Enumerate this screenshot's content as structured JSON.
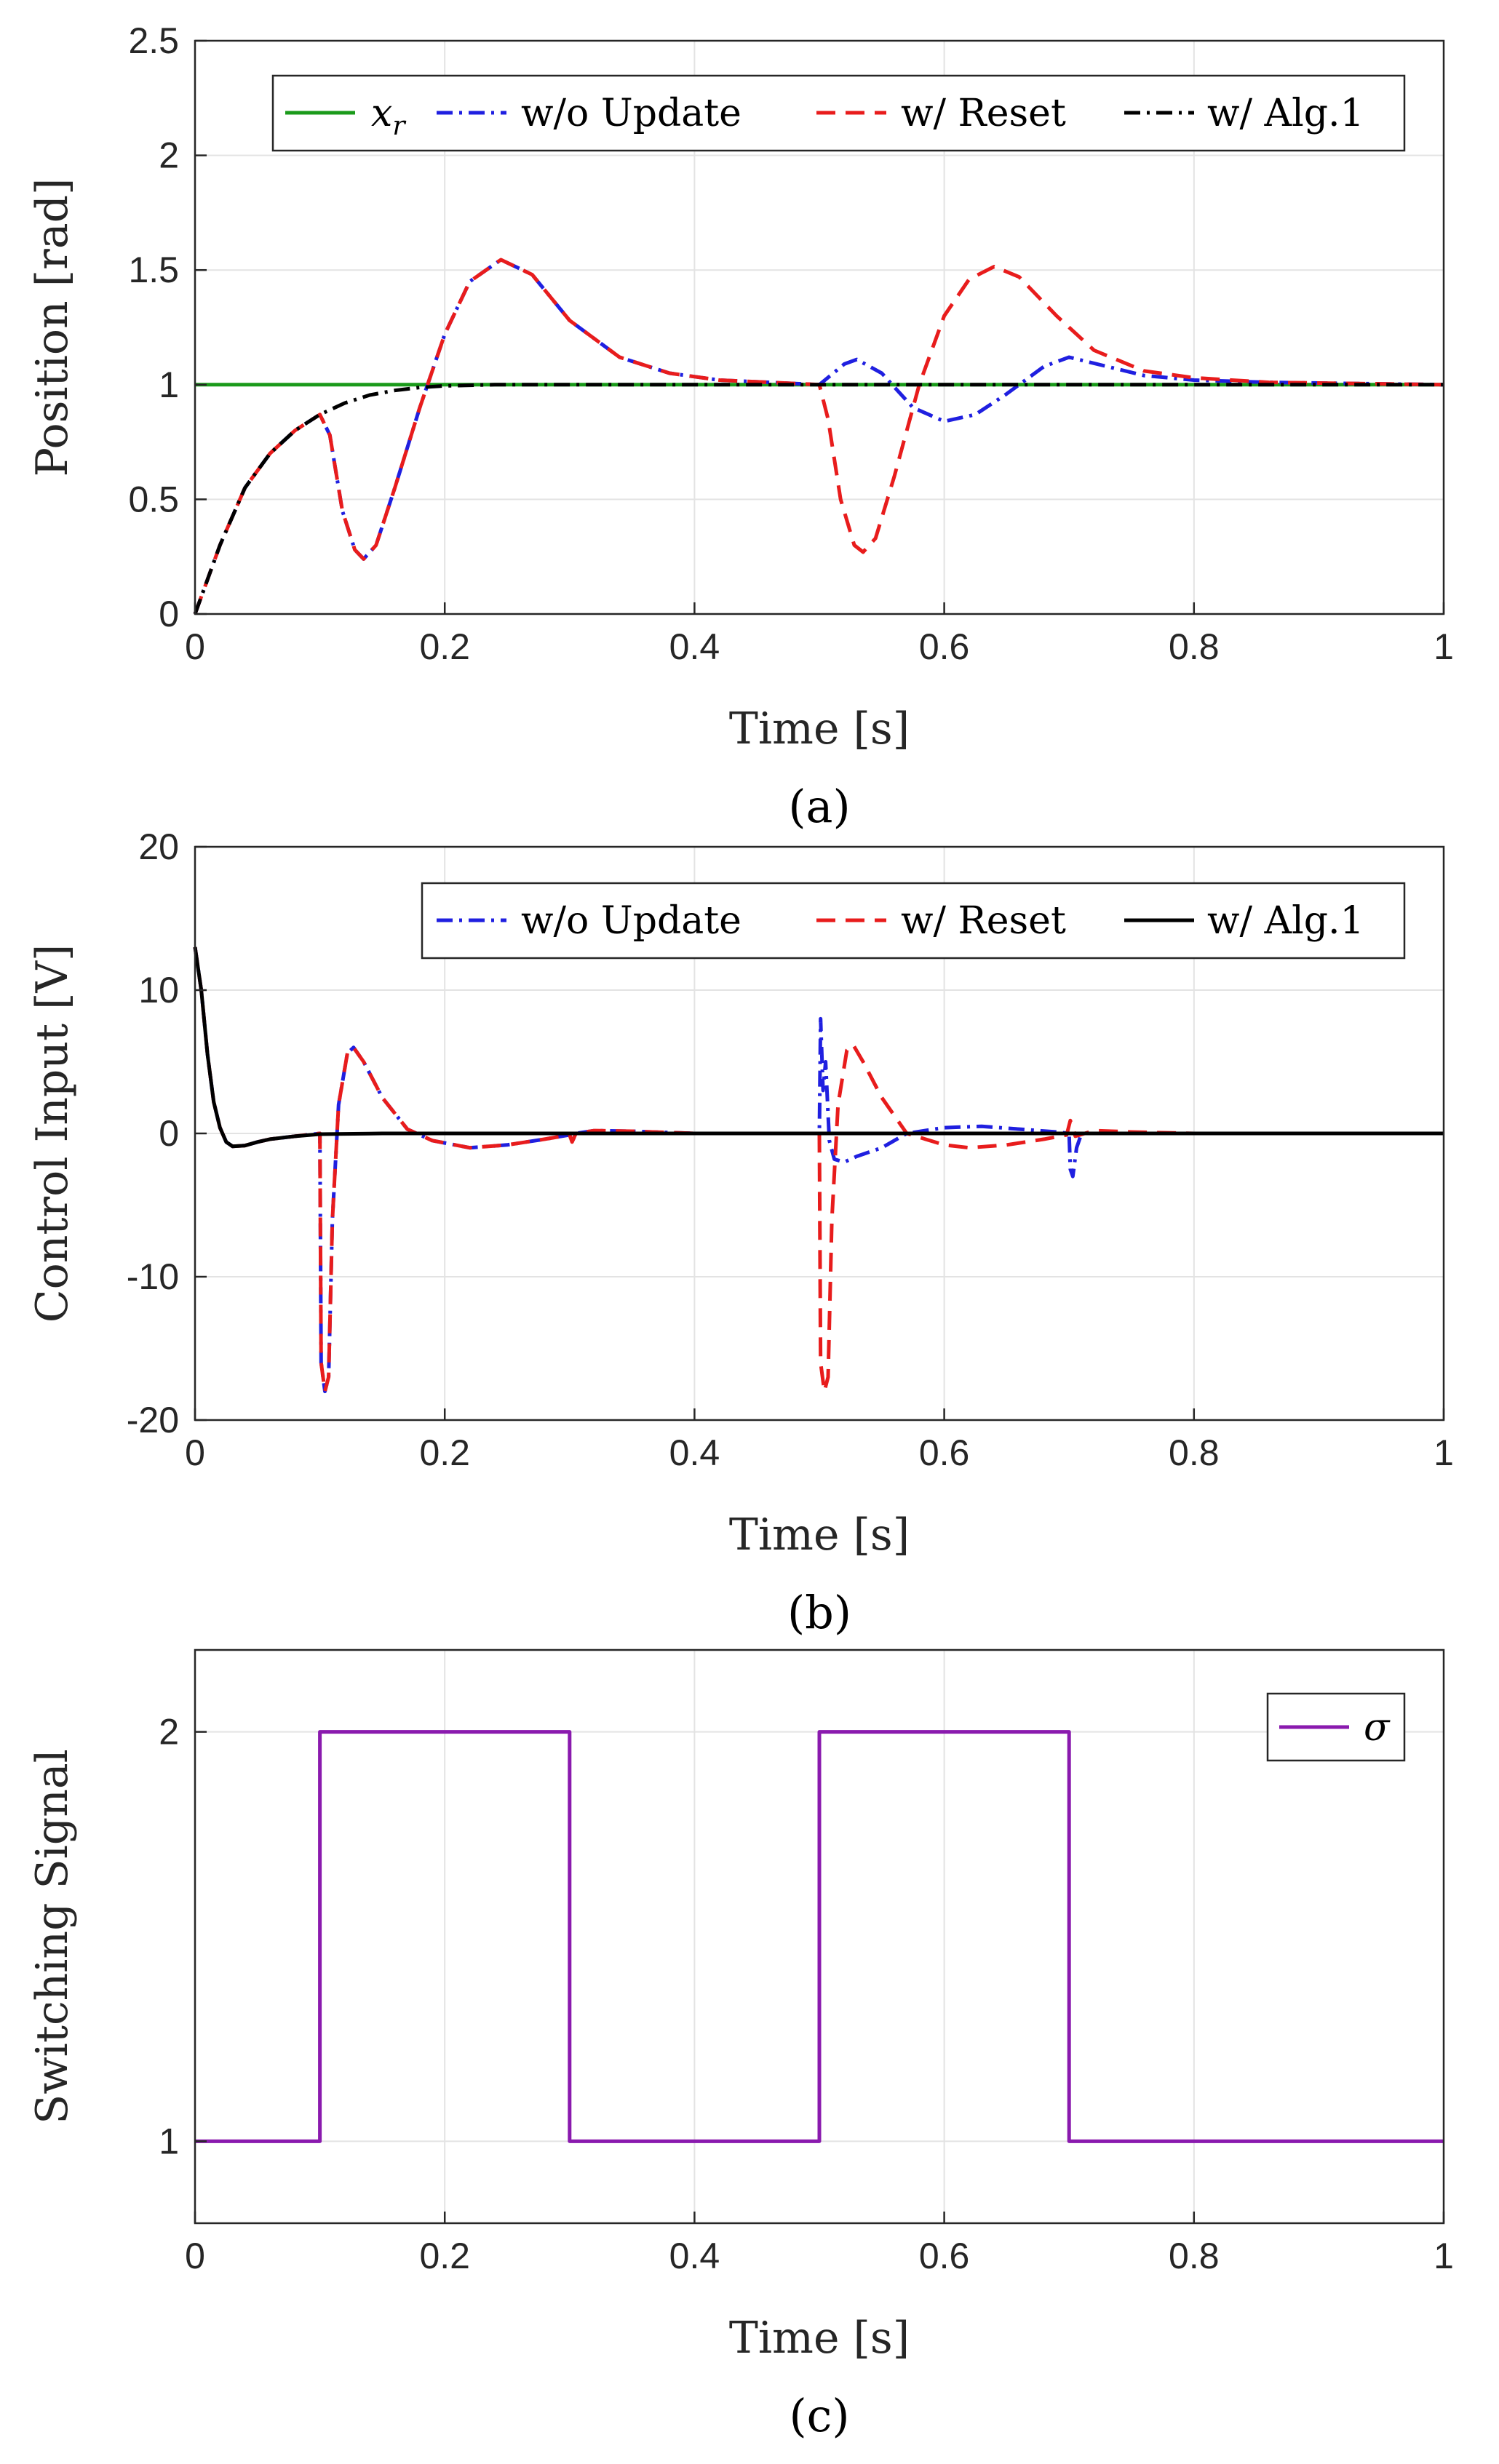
{
  "chart_data": [
    {
      "type": "line",
      "panel": "a",
      "caption": "(a)",
      "xlabel": "Time [s]",
      "ylabel": "Position [rad]",
      "xlim": [
        0,
        1
      ],
      "ylim": [
        0,
        2.5
      ],
      "xticks": [
        "0",
        "0.2",
        "0.4",
        "0.6",
        "0.8",
        "1"
      ],
      "yticks": [
        "0",
        "0.5",
        "1",
        "1.5",
        "2",
        "2.5"
      ],
      "grid": true,
      "legend_position": "top-right",
      "legend": [
        "x_r",
        "w/o Update",
        "w/ Reset",
        "w/ Alg.1"
      ],
      "series": [
        {
          "name": "x_r",
          "color": "#1a9a1a",
          "style": "solid",
          "points": [
            [
              0,
              1.0
            ],
            [
              1,
              1.0
            ]
          ]
        },
        {
          "name": "w/o Update",
          "color": "#1f1fe0",
          "style": "dashdot",
          "points": [
            [
              0,
              0
            ],
            [
              0.02,
              0.3
            ],
            [
              0.04,
              0.55
            ],
            [
              0.06,
              0.7
            ],
            [
              0.08,
              0.8
            ],
            [
              0.1,
              0.87
            ],
            [
              0.108,
              0.78
            ],
            [
              0.118,
              0.45
            ],
            [
              0.128,
              0.28
            ],
            [
              0.135,
              0.24
            ],
            [
              0.145,
              0.3
            ],
            [
              0.16,
              0.55
            ],
            [
              0.18,
              0.9
            ],
            [
              0.2,
              1.22
            ],
            [
              0.22,
              1.45
            ],
            [
              0.245,
              1.545
            ],
            [
              0.27,
              1.48
            ],
            [
              0.3,
              1.28
            ],
            [
              0.34,
              1.12
            ],
            [
              0.38,
              1.05
            ],
            [
              0.42,
              1.02
            ],
            [
              0.46,
              1.01
            ],
            [
              0.5,
              1.0
            ],
            [
              0.52,
              1.09
            ],
            [
              0.53,
              1.11
            ],
            [
              0.55,
              1.05
            ],
            [
              0.575,
              0.9
            ],
            [
              0.6,
              0.84
            ],
            [
              0.625,
              0.87
            ],
            [
              0.65,
              0.96
            ],
            [
              0.68,
              1.08
            ],
            [
              0.7,
              1.12
            ],
            [
              0.73,
              1.08
            ],
            [
              0.76,
              1.04
            ],
            [
              0.8,
              1.02
            ],
            [
              0.86,
              1.01
            ],
            [
              1,
              1.0
            ]
          ]
        },
        {
          "name": "w/ Reset",
          "color": "#e81c1c",
          "style": "dashed",
          "points": [
            [
              0,
              0
            ],
            [
              0.02,
              0.3
            ],
            [
              0.04,
              0.55
            ],
            [
              0.06,
              0.7
            ],
            [
              0.08,
              0.8
            ],
            [
              0.1,
              0.87
            ],
            [
              0.108,
              0.78
            ],
            [
              0.118,
              0.45
            ],
            [
              0.128,
              0.28
            ],
            [
              0.135,
              0.24
            ],
            [
              0.145,
              0.3
            ],
            [
              0.16,
              0.55
            ],
            [
              0.18,
              0.9
            ],
            [
              0.2,
              1.22
            ],
            [
              0.22,
              1.45
            ],
            [
              0.245,
              1.545
            ],
            [
              0.27,
              1.48
            ],
            [
              0.3,
              1.28
            ],
            [
              0.34,
              1.12
            ],
            [
              0.38,
              1.05
            ],
            [
              0.42,
              1.02
            ],
            [
              0.46,
              1.01
            ],
            [
              0.5,
              1.0
            ],
            [
              0.507,
              0.85
            ],
            [
              0.517,
              0.5
            ],
            [
              0.528,
              0.3
            ],
            [
              0.535,
              0.27
            ],
            [
              0.545,
              0.33
            ],
            [
              0.56,
              0.6
            ],
            [
              0.58,
              1.0
            ],
            [
              0.6,
              1.3
            ],
            [
              0.62,
              1.46
            ],
            [
              0.64,
              1.515
            ],
            [
              0.66,
              1.47
            ],
            [
              0.69,
              1.3
            ],
            [
              0.72,
              1.15
            ],
            [
              0.76,
              1.06
            ],
            [
              0.8,
              1.03
            ],
            [
              0.86,
              1.01
            ],
            [
              1,
              1.0
            ]
          ]
        },
        {
          "name": "w/ Alg.1",
          "color": "#000000",
          "style": "dashdot",
          "points": [
            [
              0,
              0
            ],
            [
              0.02,
              0.3
            ],
            [
              0.04,
              0.55
            ],
            [
              0.06,
              0.7
            ],
            [
              0.08,
              0.8
            ],
            [
              0.1,
              0.87
            ],
            [
              0.12,
              0.92
            ],
            [
              0.14,
              0.955
            ],
            [
              0.16,
              0.975
            ],
            [
              0.18,
              0.988
            ],
            [
              0.2,
              0.995
            ],
            [
              0.24,
              1.0
            ],
            [
              1,
              1.0
            ]
          ]
        }
      ]
    },
    {
      "type": "line",
      "panel": "b",
      "caption": "(b)",
      "xlabel": "Time [s]",
      "ylabel": "Control Input [V]",
      "xlim": [
        0,
        1
      ],
      "ylim": [
        -20,
        20
      ],
      "xticks": [
        "0",
        "0.2",
        "0.4",
        "0.6",
        "0.8",
        "1"
      ],
      "yticks": [
        "-20",
        "-10",
        "0",
        "10",
        "20"
      ],
      "grid": true,
      "legend_position": "top-right",
      "legend": [
        "w/o Update",
        "w/ Reset",
        "w/ Alg.1"
      ],
      "series": [
        {
          "name": "w/o Update",
          "color": "#1f1fe0",
          "style": "dashdot",
          "points": [
            [
              0,
              13
            ],
            [
              0.005,
              10
            ],
            [
              0.01,
              5.5
            ],
            [
              0.015,
              2.2
            ],
            [
              0.02,
              0.4
            ],
            [
              0.025,
              -0.6
            ],
            [
              0.03,
              -0.9
            ],
            [
              0.04,
              -0.85
            ],
            [
              0.05,
              -0.6
            ],
            [
              0.06,
              -0.4
            ],
            [
              0.08,
              -0.2
            ],
            [
              0.1,
              0.0
            ],
            [
              0.101,
              -16
            ],
            [
              0.104,
              -18
            ],
            [
              0.107,
              -17
            ],
            [
              0.11,
              -6
            ],
            [
              0.115,
              2
            ],
            [
              0.122,
              5.6
            ],
            [
              0.127,
              6.0
            ],
            [
              0.135,
              5.0
            ],
            [
              0.15,
              2.5
            ],
            [
              0.17,
              0.3
            ],
            [
              0.19,
              -0.5
            ],
            [
              0.22,
              -1.0
            ],
            [
              0.25,
              -0.8
            ],
            [
              0.28,
              -0.4
            ],
            [
              0.3,
              -0.1
            ],
            [
              0.302,
              -0.6
            ],
            [
              0.305,
              0.0
            ],
            [
              0.32,
              0.2
            ],
            [
              0.35,
              0.15
            ],
            [
              0.4,
              0.0
            ],
            [
              0.5,
              0.0
            ],
            [
              0.501,
              8
            ],
            [
              0.503,
              3
            ],
            [
              0.505,
              5
            ],
            [
              0.508,
              -0.5
            ],
            [
              0.512,
              -1.8
            ],
            [
              0.52,
              -2.0
            ],
            [
              0.53,
              -1.6
            ],
            [
              0.55,
              -1.0
            ],
            [
              0.57,
              0.0
            ],
            [
              0.6,
              0.4
            ],
            [
              0.63,
              0.5
            ],
            [
              0.66,
              0.3
            ],
            [
              0.69,
              0.1
            ],
            [
              0.7,
              0.0
            ],
            [
              0.701,
              -2.5
            ],
            [
              0.703,
              -3.0
            ],
            [
              0.706,
              -1.0
            ],
            [
              0.71,
              0.0
            ],
            [
              0.75,
              0.0
            ],
            [
              1,
              0.0
            ]
          ]
        },
        {
          "name": "w/ Reset",
          "color": "#e81c1c",
          "style": "dashed",
          "points": [
            [
              0,
              13
            ],
            [
              0.005,
              10
            ],
            [
              0.01,
              5.5
            ],
            [
              0.015,
              2.2
            ],
            [
              0.02,
              0.4
            ],
            [
              0.025,
              -0.6
            ],
            [
              0.03,
              -0.9
            ],
            [
              0.04,
              -0.85
            ],
            [
              0.05,
              -0.6
            ],
            [
              0.06,
              -0.4
            ],
            [
              0.08,
              -0.2
            ],
            [
              0.1,
              0.0
            ],
            [
              0.101,
              -16
            ],
            [
              0.104,
              -18
            ],
            [
              0.107,
              -17
            ],
            [
              0.11,
              -6
            ],
            [
              0.115,
              2
            ],
            [
              0.122,
              5.6
            ],
            [
              0.127,
              6.0
            ],
            [
              0.135,
              5.0
            ],
            [
              0.15,
              2.5
            ],
            [
              0.17,
              0.3
            ],
            [
              0.19,
              -0.5
            ],
            [
              0.22,
              -1.0
            ],
            [
              0.25,
              -0.8
            ],
            [
              0.28,
              -0.4
            ],
            [
              0.3,
              -0.1
            ],
            [
              0.302,
              -0.6
            ],
            [
              0.305,
              0.0
            ],
            [
              0.32,
              0.2
            ],
            [
              0.35,
              0.15
            ],
            [
              0.4,
              0.0
            ],
            [
              0.5,
              0.0
            ],
            [
              0.501,
              -16
            ],
            [
              0.504,
              -18
            ],
            [
              0.507,
              -17
            ],
            [
              0.51,
              -6
            ],
            [
              0.515,
              2
            ],
            [
              0.522,
              5.8
            ],
            [
              0.527,
              6.2
            ],
            [
              0.535,
              5.0
            ],
            [
              0.55,
              2.5
            ],
            [
              0.57,
              0.0
            ],
            [
              0.6,
              -0.8
            ],
            [
              0.62,
              -1.0
            ],
            [
              0.65,
              -0.8
            ],
            [
              0.68,
              -0.4
            ],
            [
              0.698,
              -0.1
            ],
            [
              0.701,
              0.9
            ],
            [
              0.705,
              -0.2
            ],
            [
              0.72,
              0.2
            ],
            [
              0.75,
              0.1
            ],
            [
              0.8,
              0.0
            ],
            [
              1,
              0.0
            ]
          ]
        },
        {
          "name": "w/ Alg.1",
          "color": "#000000",
          "style": "solid",
          "points": [
            [
              0,
              13
            ],
            [
              0.005,
              10
            ],
            [
              0.01,
              5.5
            ],
            [
              0.015,
              2.2
            ],
            [
              0.02,
              0.4
            ],
            [
              0.025,
              -0.6
            ],
            [
              0.03,
              -0.9
            ],
            [
              0.04,
              -0.85
            ],
            [
              0.05,
              -0.6
            ],
            [
              0.06,
              -0.4
            ],
            [
              0.08,
              -0.2
            ],
            [
              0.1,
              -0.05
            ],
            [
              0.15,
              0.0
            ],
            [
              1,
              0.0
            ]
          ]
        }
      ]
    },
    {
      "type": "line",
      "panel": "c",
      "caption": "(c)",
      "xlabel": "Time [s]",
      "ylabel": "Switching Signal",
      "xlim": [
        0,
        1
      ],
      "ylim": [
        0.8,
        2.2
      ],
      "xticks": [
        "0",
        "0.2",
        "0.4",
        "0.6",
        "0.8",
        "1"
      ],
      "yticks": [
        "1",
        "2"
      ],
      "grid": true,
      "legend_position": "top-right",
      "legend": [
        "σ"
      ],
      "series": [
        {
          "name": "σ",
          "color": "#8a1aae",
          "style": "solid",
          "points": [
            [
              0,
              1
            ],
            [
              0.1,
              1
            ],
            [
              0.1,
              2
            ],
            [
              0.3,
              2
            ],
            [
              0.3,
              1
            ],
            [
              0.5,
              1
            ],
            [
              0.5,
              2
            ],
            [
              0.7,
              2
            ],
            [
              0.7,
              1
            ],
            [
              1,
              1
            ]
          ]
        }
      ]
    }
  ]
}
